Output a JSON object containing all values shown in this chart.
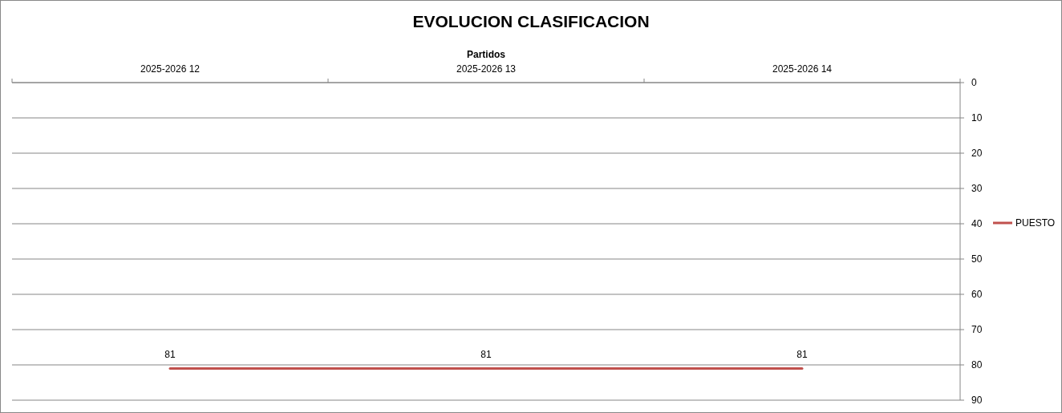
{
  "chart_data": {
    "type": "line",
    "title": "EVOLUCION CLASIFICACION",
    "xlabel": "Partidos",
    "categories": [
      "2025-2026 12",
      "2025-2026 13",
      "2025-2026 14"
    ],
    "series": [
      {
        "name": "PUESTO",
        "color": "#c0504d",
        "values": [
          81,
          81,
          81
        ]
      }
    ],
    "ylim": [
      90,
      0
    ],
    "yticks": [
      0,
      10,
      20,
      30,
      40,
      50,
      60,
      70,
      80,
      90
    ],
    "grid": "y",
    "legend": "right",
    "data_labels": true,
    "marker": "none",
    "line_style": "solid"
  }
}
